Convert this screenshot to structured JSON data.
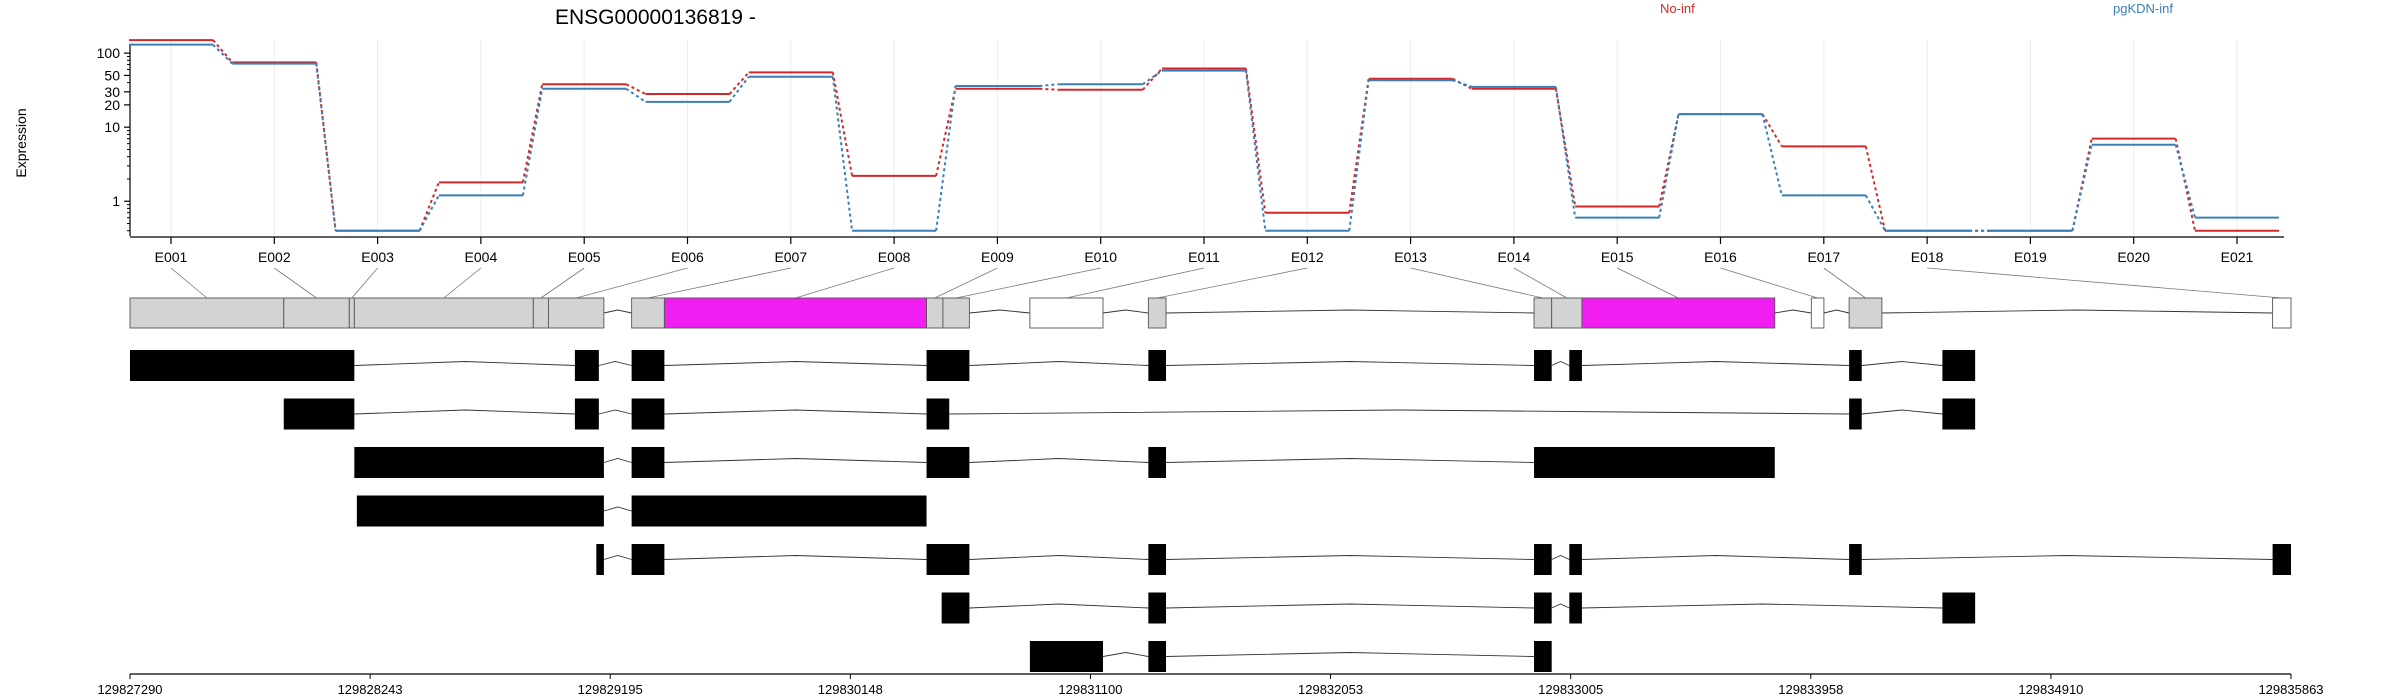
{
  "title": "ENSG00000136819 -",
  "legend": [
    {
      "label": "No-inf",
      "color": "#d62728"
    },
    {
      "label": "pgKDN-inf",
      "color": "#3a7fb5"
    }
  ],
  "chart_data": {
    "type": "line",
    "ylabel": "Expression",
    "y_scale": "log",
    "y_ticks": [
      1,
      10,
      20,
      30,
      50,
      100
    ],
    "y_tick_labels": [
      "1",
      "10",
      "20",
      "30",
      "50",
      "100"
    ],
    "categories": [
      "E001",
      "E002",
      "E003",
      "E004",
      "E005",
      "E006",
      "E007",
      "E008",
      "E009",
      "E010",
      "E011",
      "E012",
      "E013",
      "E014",
      "E015",
      "E016",
      "E017",
      "E018",
      "E019",
      "E020",
      "E021"
    ],
    "series": [
      {
        "name": "No-inf",
        "color": "#d62728",
        "values": [
          150,
          75,
          0.4,
          1.8,
          38,
          28,
          55,
          2.2,
          33,
          32,
          62,
          0.7,
          45,
          33,
          0.85,
          15,
          5.5,
          0.4,
          0.4,
          7,
          0.4
        ]
      },
      {
        "name": "pgKDN-inf",
        "color": "#3a7fb5",
        "values": [
          130,
          72,
          0.4,
          1.2,
          33,
          22,
          48,
          0.4,
          36,
          38,
          58,
          0.4,
          43,
          35,
          0.6,
          15,
          1.2,
          0.4,
          0.4,
          5.8,
          0.6
        ]
      }
    ],
    "genomic_axis": {
      "start": 129827290,
      "end": 129835863,
      "tick_labels": [
        "129827290",
        "129828243",
        "129829195",
        "129830148",
        "129831100",
        "129832053",
        "129833005",
        "129833958",
        "129834910",
        "129835863"
      ]
    },
    "exon_highlight_color": "#f01ef0"
  }
}
